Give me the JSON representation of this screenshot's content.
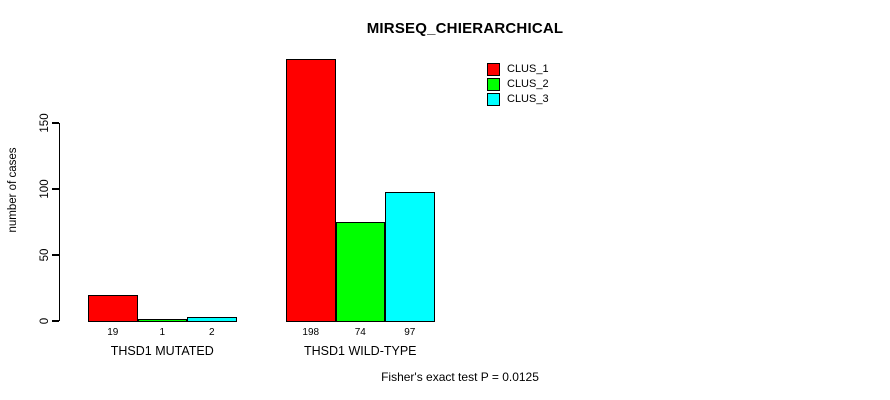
{
  "chart_data": {
    "type": "bar",
    "title": "MIRSEQ_CHIERARCHICAL",
    "ylabel": "number of cases",
    "xlabel": "",
    "categories": [
      "THSD1 MUTATED",
      "THSD1 WILD-TYPE"
    ],
    "series": [
      {
        "name": "CLUS_1",
        "color": "#ff0000",
        "values": [
          19,
          198
        ]
      },
      {
        "name": "CLUS_2",
        "color": "#00ff00",
        "values": [
          1,
          74
        ]
      },
      {
        "name": "CLUS_3",
        "color": "#00ffff",
        "values": [
          2,
          97
        ]
      }
    ],
    "yticks": [
      0,
      50,
      100,
      150
    ],
    "ylim": [
      0,
      200
    ],
    "grid": false,
    "bar_value_labels_shown": true,
    "legend_position": "top-right",
    "legend": [
      "CLUS_1",
      "CLUS_2",
      "CLUS_3"
    ],
    "annotation": "Fisher's exact test P = 0.0125",
    "bar_border_color": "#000000",
    "axis_color": "#000000",
    "background_color": "#ffffff"
  }
}
